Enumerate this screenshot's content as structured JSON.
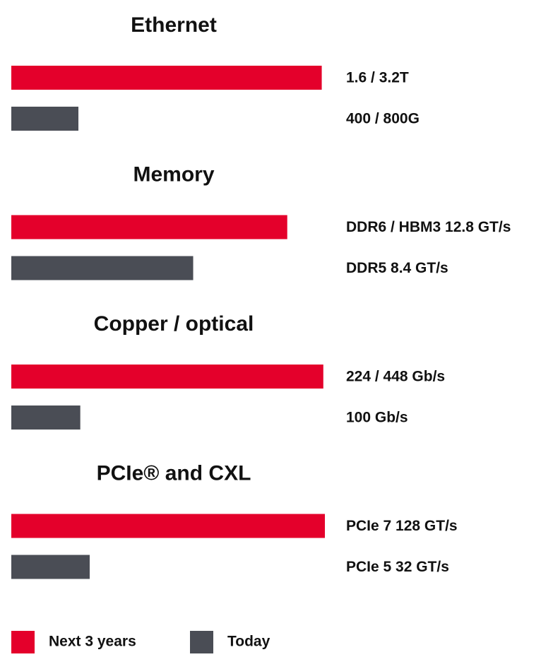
{
  "chart_data": {
    "type": "bar",
    "orientation": "horizontal",
    "categories": [
      "Ethernet",
      "Memory",
      "Copper / optical",
      "PCIe® and CXL"
    ],
    "xlim": [
      0,
      100
    ],
    "series": [
      {
        "name": "Next 3 years",
        "color": "#e4002b",
        "values": [
          99,
          88,
          99.5,
          100
        ],
        "value_labels": [
          "1.6 / 3.2T",
          "DDR6 / HBM3 12.8 GT/s",
          "224 / 448 Gb/s",
          "PCIe 7 128 GT/s"
        ]
      },
      {
        "name": "Today",
        "color": "#4a4d55",
        "values": [
          21.4,
          58,
          22,
          25
        ],
        "value_labels": [
          "400 / 800G",
          "DDR5 8.4 GT/s",
          "100 Gb/s",
          "PCIe 5 32 GT/s"
        ]
      }
    ],
    "legend": "bottom-left"
  }
}
